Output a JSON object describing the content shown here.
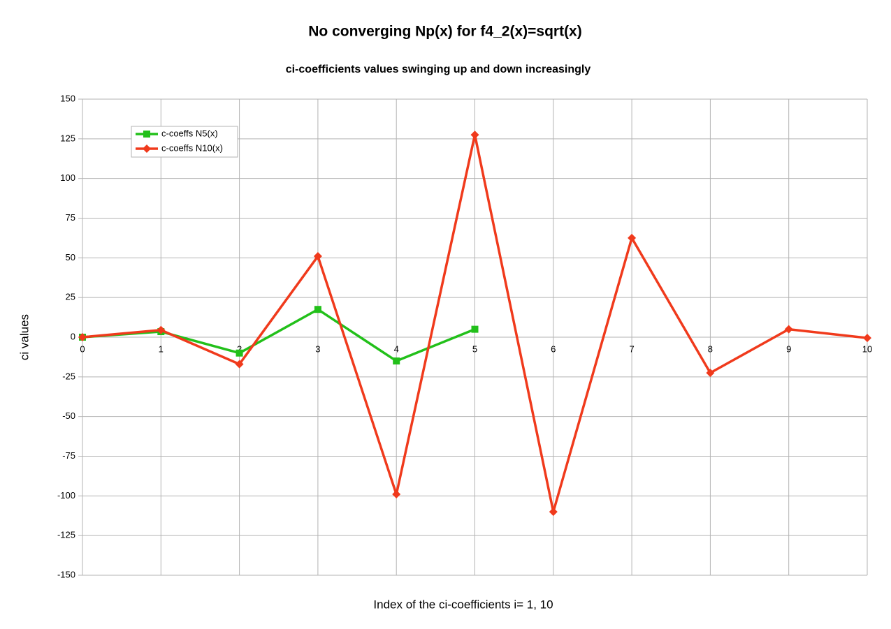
{
  "chart_data": {
    "type": "line",
    "title": "No converging Np(x) for f4_2(x)=sqrt(x)",
    "subtitle": "ci-coefficients values swinging up and down increasingly",
    "x_label": "Index of the ci-coefficients i= 1, 10",
    "y_label": "ci values",
    "x": [
      0,
      1,
      2,
      3,
      4,
      5,
      6,
      7,
      8,
      9,
      10
    ],
    "series": [
      {
        "name": "c-coeffs N5(x)",
        "color": "#22c01a",
        "marker": "square",
        "values": [
          0,
          3.5,
          -10,
          17.5,
          -15,
          5,
          null,
          null,
          null,
          null,
          null
        ]
      },
      {
        "name": "c-coeffs N10(x)",
        "color": "#f03a1c",
        "marker": "diamond",
        "values": [
          0,
          4.5,
          -17,
          51,
          -99,
          127.5,
          -110,
          62.5,
          -22.5,
          5,
          -0.5
        ]
      }
    ],
    "xlim": [
      0,
      10
    ],
    "xticks": [
      0,
      1,
      2,
      3,
      4,
      5,
      6,
      7,
      8,
      9,
      10
    ],
    "ylim": [
      -150,
      150
    ],
    "yticks": [
      -150,
      -125,
      -100,
      -75,
      -50,
      -25,
      0,
      25,
      50,
      75,
      100,
      125,
      150
    ],
    "grid": true,
    "legend": "upper-left"
  }
}
